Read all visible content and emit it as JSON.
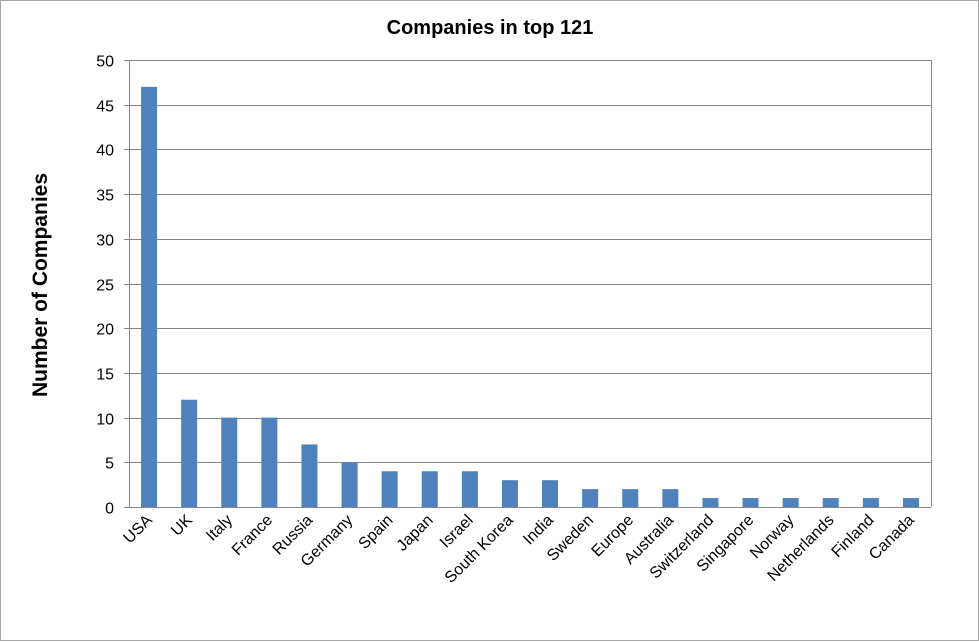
{
  "chart_data": {
    "type": "bar",
    "title": "Companies in top 121",
    "xlabel": "",
    "ylabel": "Number of Companies",
    "ylim": [
      0,
      50
    ],
    "yticks": [
      0,
      5,
      10,
      15,
      20,
      25,
      30,
      35,
      40,
      45,
      50
    ],
    "grid": true,
    "legend": "none",
    "bar_color": "#4f81bd",
    "categories": [
      "USA",
      "UK",
      "Italy",
      "France",
      "Russia",
      "Germany",
      "Spain",
      "Japan",
      "Israel",
      "South Korea",
      "India",
      "Sweden",
      "Europe",
      "Australia",
      "Switzerland",
      "Singapore",
      "Norway",
      "Netherlands",
      "Finland",
      "Canada"
    ],
    "values": [
      47,
      12,
      10,
      10,
      7,
      5,
      4,
      4,
      4,
      3,
      3,
      2,
      2,
      2,
      1,
      1,
      1,
      1,
      1,
      1
    ]
  }
}
